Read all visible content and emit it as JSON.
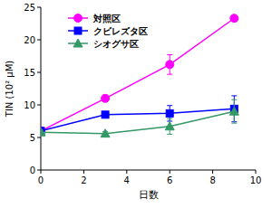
{
  "chart_data": {
    "type": "line",
    "x_label": "日数",
    "y_label": "TIN (10² μM)",
    "x": [
      0,
      3,
      6,
      9
    ],
    "series": [
      {
        "name": "対照区",
        "color": "#ff00ff",
        "marker": "circle",
        "values": [
          6.0,
          11.0,
          16.2,
          23.3
        ],
        "errors": [
          0.3,
          0.5,
          1.5,
          0.3
        ]
      },
      {
        "name": "クビレズタ区",
        "color": "#0000ff",
        "marker": "square",
        "values": [
          6.0,
          8.5,
          8.7,
          9.4
        ],
        "errors": [
          0.3,
          0.3,
          1.2,
          2.0
        ]
      },
      {
        "name": "シオグサ区",
        "color": "#339966",
        "marker": "triangle",
        "values": [
          5.8,
          5.6,
          6.7,
          9.0
        ],
        "errors": [
          0.3,
          0.3,
          1.2,
          1.8
        ]
      }
    ],
    "xlim": [
      0,
      10
    ],
    "xticks": [
      0,
      2,
      4,
      6,
      8,
      10
    ],
    "ylim": [
      0,
      25
    ],
    "yticks": [
      0,
      5,
      10,
      15,
      20,
      25
    ],
    "grid": false,
    "legend": "upper left"
  }
}
